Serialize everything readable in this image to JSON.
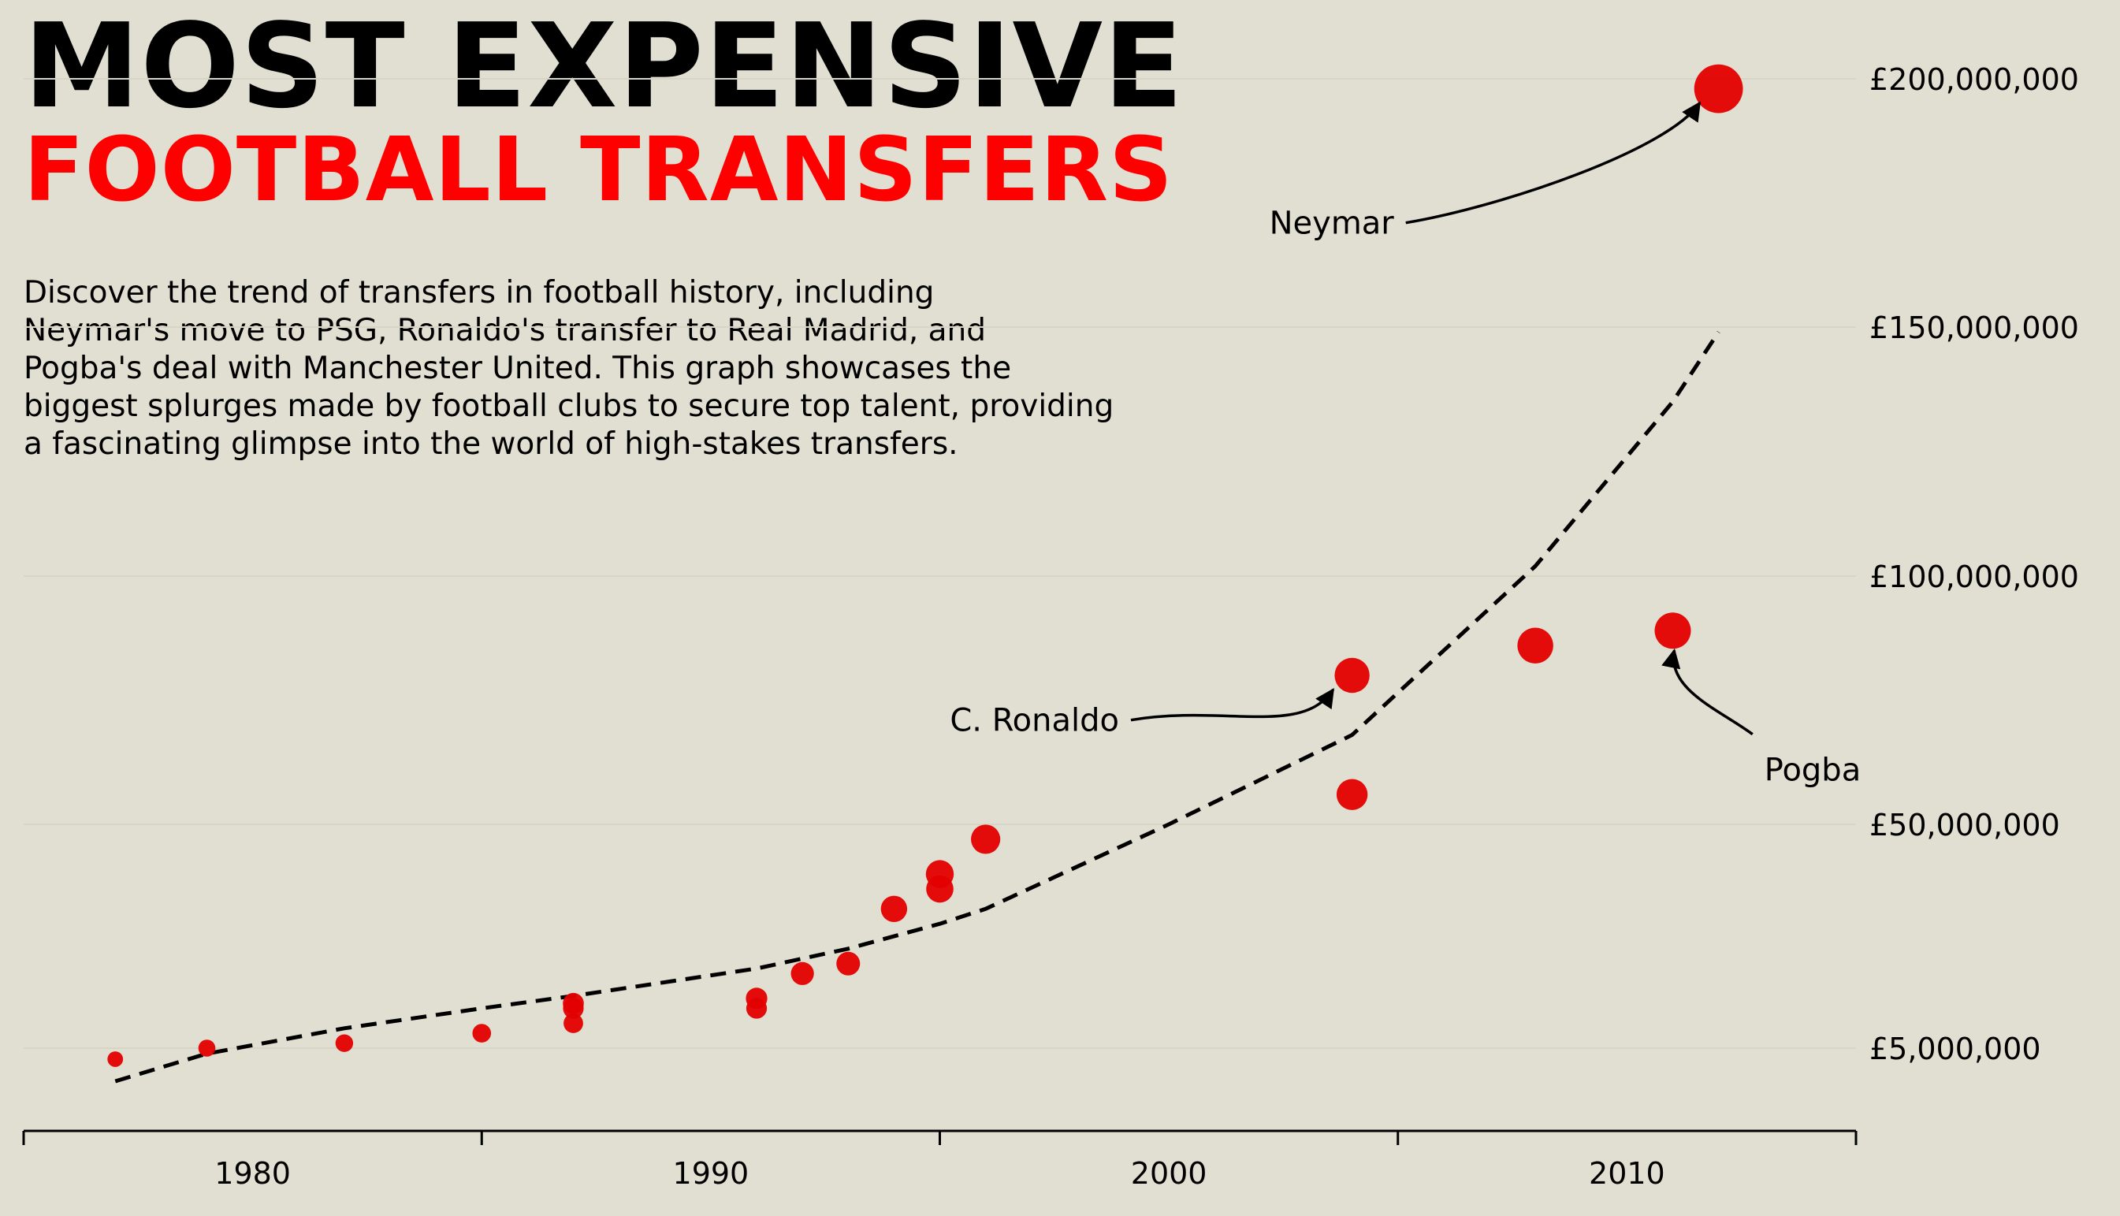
{
  "title": "MOST EXPENSIVE",
  "subtitle": "FOOTBALL TRANSFERS",
  "description_lines": [
    "Discover the trend of transfers in football history, including",
    "Neymar's move to PSG, Ronaldo's transfer to Real Madrid, and",
    "Pogba's deal with Manchester United. This graph showcases the",
    "biggest splurges made by football clubs to secure top talent, providing",
    "a fascinating glimpse into the world of high-stakes transfers."
  ],
  "colors": {
    "background": "#e0dfd1",
    "points": "#e30000",
    "title_accent": "#ff0000",
    "trend": "#000000",
    "grid": "#d6d5c6"
  },
  "chart_data": {
    "type": "scatter",
    "xlim": [
      1975,
      2015
    ],
    "x_ticks": [
      1980,
      1990,
      2000,
      2010
    ],
    "x_tick_labels": [
      "1980",
      "1990",
      "2000",
      "2010"
    ],
    "y_axis_position": "right",
    "y_ticks": [
      5000000,
      50000000,
      100000000,
      150000000,
      200000000
    ],
    "y_tick_labels": [
      "£5,000,000",
      "£50,000,000",
      "£100,000,000",
      "£150,000,000",
      "£200,000,000"
    ],
    "grid": "horizontal",
    "points": [
      {
        "x": 1977,
        "y": 3000000
      },
      {
        "x": 1979,
        "y": 5000000
      },
      {
        "x": 1982,
        "y": 6000000
      },
      {
        "x": 1985,
        "y": 8000000
      },
      {
        "x": 1987,
        "y": 10000000
      },
      {
        "x": 1987,
        "y": 13000000
      },
      {
        "x": 1987,
        "y": 14000000
      },
      {
        "x": 1991,
        "y": 13000000
      },
      {
        "x": 1991,
        "y": 15000000
      },
      {
        "x": 1992,
        "y": 20000000
      },
      {
        "x": 1993,
        "y": 22000000
      },
      {
        "x": 1994,
        "y": 33000000
      },
      {
        "x": 1995,
        "y": 37000000
      },
      {
        "x": 1995,
        "y": 40000000
      },
      {
        "x": 1996,
        "y": 47000000
      },
      {
        "x": 2004,
        "y": 56000000
      },
      {
        "x": 2004,
        "y": 80000000
      },
      {
        "x": 2008,
        "y": 86000000
      },
      {
        "x": 2011,
        "y": 89000000
      },
      {
        "x": 2012,
        "y": 198000000
      }
    ],
    "trend_line": {
      "style": "dashed",
      "x": [
        1977,
        1979,
        1982,
        1985,
        1987,
        1991,
        1993,
        1995,
        1996,
        2000,
        2004,
        2008,
        2011,
        2012
      ],
      "y": [
        -1000000,
        4000000,
        9000000,
        13000000,
        15500000,
        21000000,
        25000000,
        30000000,
        33000000,
        50000000,
        68000000,
        102000000,
        135000000,
        149000000
      ]
    },
    "annotations": [
      {
        "text": "Neymar",
        "point_x": 2012,
        "point_y": 198000000,
        "label_x": 2005,
        "label_y": 171000000
      },
      {
        "text": "C. Ronaldo",
        "point_x": 2004,
        "point_y": 80000000,
        "label_x": 1999,
        "label_y": 71000000
      },
      {
        "text": "Pogba",
        "point_x": 2011,
        "point_y": 89000000,
        "label_x": 2013,
        "label_y": 61000000
      }
    ]
  }
}
